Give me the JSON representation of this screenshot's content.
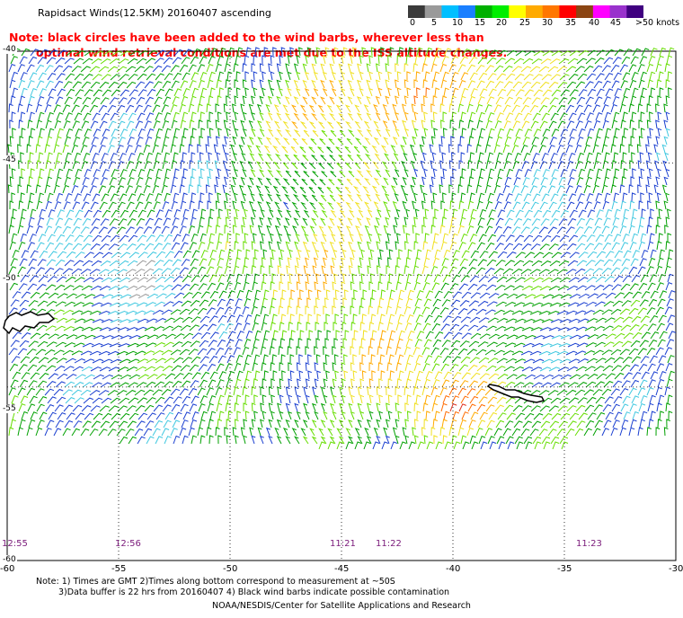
{
  "title": "Rapidsact Winds(12.5KM) 20160407 ascending",
  "note": {
    "line1": "Note: black circles have been added to the wind barbs, wherever less than",
    "line2": "optimal wind retrieval conditions are met due to the ISS altitude changes."
  },
  "scale": {
    "labels": [
      "0",
      "5",
      "10",
      "15",
      "20",
      "25",
      "30",
      "35",
      "40",
      "45",
      ">50 knots"
    ],
    "colors": [
      "#3a3a3a",
      "#9a9a9a",
      "#00bfff",
      "#1a7fff",
      "#00b000",
      "#00ee00",
      "#ffff00",
      "#ffaa00",
      "#ff7700",
      "#ff0000",
      "#8b4513",
      "#ff00ff",
      "#9932cc",
      "#400080"
    ]
  },
  "lat_labels": [
    "-40",
    "-45",
    "-50",
    "-55",
    "-60"
  ],
  "lon_labels": [
    "-60",
    "-55",
    "-50",
    "-45",
    "-40",
    "-35",
    "-30"
  ],
  "time_labels": [
    "12:55",
    "12:56",
    "11:21",
    "11:22",
    "11:23"
  ],
  "footnote": {
    "line1": "Note: 1) Times are GMT 2)Times along bottom correspond to measurement at ~50S",
    "line2": "3)Data buffer is 22 hrs from 20160407 4) Black wind barbs indicate possible contamination"
  },
  "credit": "NOAA/NESDIS/Center for Satellite Applications and Research"
}
